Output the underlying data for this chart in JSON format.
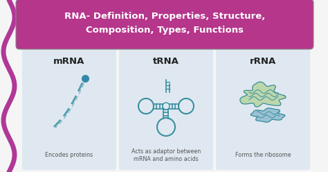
{
  "title_line1": "RNA- Definition, Properties, Structure,",
  "title_line2": "Composition, Types, Functions",
  "title_bg_color": "#b5368b",
  "title_text_color": "#ffffff",
  "bg_color": "#f5f5f5",
  "card_bg_color": "#dfe8f0",
  "wave_color": "#b03898",
  "types": [
    "mRNA",
    "tRNA",
    "rRNA"
  ],
  "descriptions": [
    "Encodes proteins",
    "Acts as adaptor between\nmRNA and amino acids",
    "Forms the ribosome"
  ],
  "teal_color": "#3a8fa0",
  "green_blob_color": "#b8d4a0",
  "blue_blob_color": "#90bcd0",
  "label_color": "#222222",
  "desc_color": "#555555"
}
